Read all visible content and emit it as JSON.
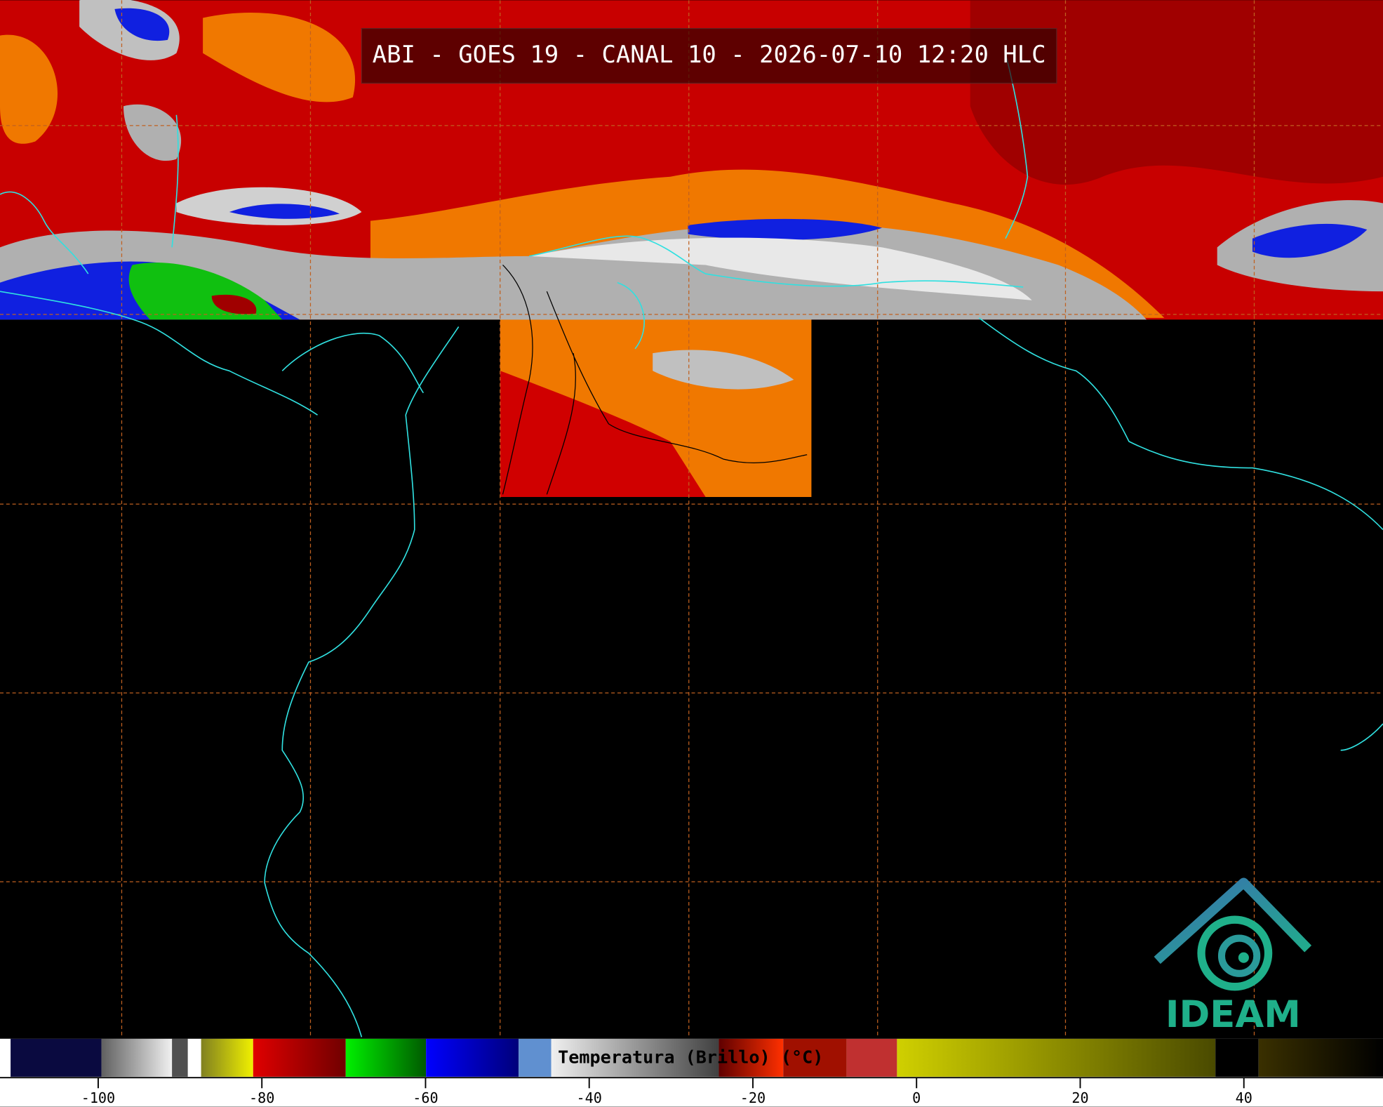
{
  "header": {
    "title": "ABI - GOES 19 - CANAL 10 - 2026-07-10 12:20 HLC"
  },
  "colorbar": {
    "label": "Temperatura (Brillo) (°C)",
    "range": [
      -112,
      57
    ],
    "ticks": [
      -100,
      -80,
      -60,
      -40,
      -20,
      0,
      20,
      40
    ]
  },
  "logo": {
    "text": "IDEAM"
  }
}
